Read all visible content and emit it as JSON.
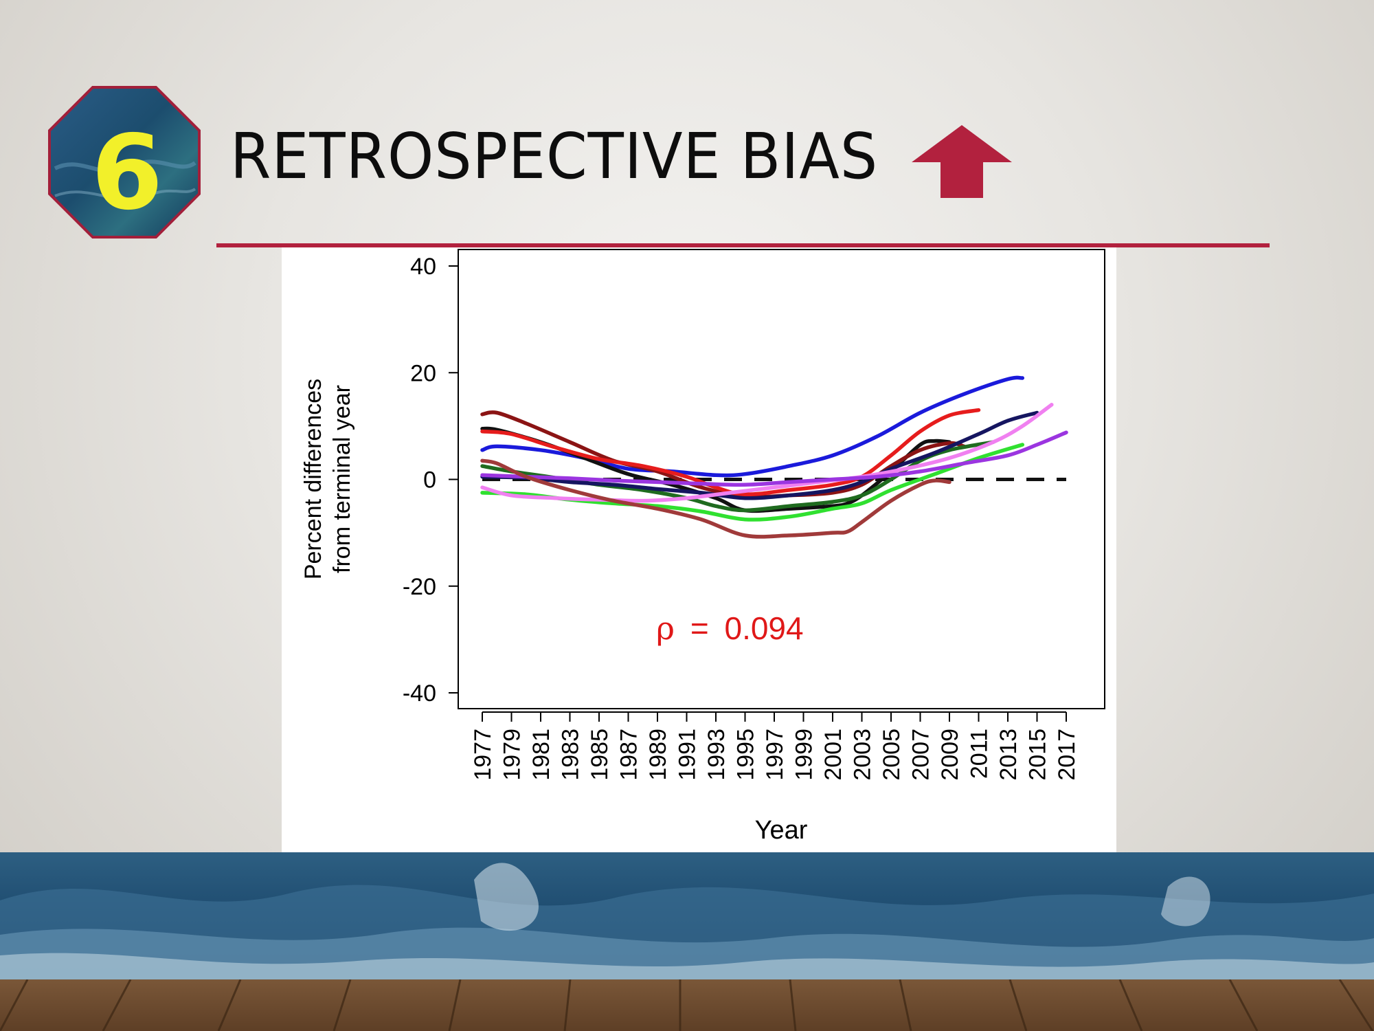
{
  "slide": {
    "badge_number": "6",
    "title": "RETROSPECTIVE BIAS",
    "accent_color": "#b2213e",
    "badge_text_color": "#f2f02a",
    "arrow_icon": "arrow-up-icon"
  },
  "chart_data": {
    "type": "line",
    "title": "",
    "xlabel": "Year",
    "ylabel": [
      "Percent differences",
      "from terminal year"
    ],
    "xlim": [
      1977,
      2017
    ],
    "ylim": [
      -40,
      40
    ],
    "xticks": [
      "1977",
      "1979",
      "1981",
      "1983",
      "1985",
      "1987",
      "1989",
      "1991",
      "1993",
      "1995",
      "1997",
      "1999",
      "2001",
      "2003",
      "2005",
      "2007",
      "2009",
      "2011",
      "2013",
      "2015",
      "2017"
    ],
    "yticks": [
      "40",
      "20",
      "0",
      "-20",
      "-40"
    ],
    "grid": false,
    "legend": "none",
    "annotation": {
      "symbol": "ρ",
      "equals": "=",
      "value": "0.094",
      "color": "#e01818"
    },
    "series": [
      {
        "color": "#1a1adb",
        "x": [
          1977,
          1978,
          1981,
          1984,
          1987,
          1990,
          1993,
          1995,
          1998,
          2001,
          2004,
          2007,
          2010,
          2013,
          2014
        ],
        "y": [
          5.5,
          6.2,
          5.5,
          4.0,
          2.0,
          1.5,
          0.8,
          1.0,
          2.5,
          4.5,
          8.0,
          12.5,
          16.0,
          18.8,
          19.0
        ]
      },
      {
        "color": "#111111",
        "x": [
          1977,
          1978,
          1981,
          1984,
          1987,
          1990,
          1993,
          1995,
          1998,
          2001,
          2002,
          2003,
          2005,
          2007,
          2008,
          2009
        ],
        "y": [
          9.5,
          9.3,
          7.0,
          4.0,
          1.0,
          -1.0,
          -3.5,
          -5.8,
          -5.5,
          -5.0,
          -4.5,
          -3.0,
          1.5,
          6.5,
          7.2,
          7.0
        ]
      },
      {
        "color": "#8b1414",
        "x": [
          1977,
          1978,
          1980,
          1983,
          1986,
          1989,
          1992,
          1995,
          1998,
          2001,
          2003,
          2005,
          2007,
          2009,
          2010
        ],
        "y": [
          12.2,
          12.5,
          10.5,
          7.0,
          3.5,
          1.5,
          -1.5,
          -3.2,
          -3.0,
          -2.5,
          -1.0,
          2.5,
          5.5,
          6.8,
          6.2
        ]
      },
      {
        "color": "#e61c1c",
        "x": [
          1977,
          1979,
          1982,
          1985,
          1988,
          1991,
          1993,
          1995,
          1998,
          2001,
          2003,
          2005,
          2007,
          2009,
          2011
        ],
        "y": [
          9.0,
          8.5,
          6.0,
          3.8,
          2.5,
          0.5,
          -1.5,
          -2.8,
          -2.0,
          -1.0,
          0.5,
          4.5,
          9.0,
          12.0,
          13.0
        ]
      },
      {
        "color": "#1f6b1f",
        "x": [
          1977,
          1979,
          1982,
          1985,
          1988,
          1991,
          1993,
          1995,
          1998,
          2001,
          2003,
          2005,
          2007,
          2009,
          2012
        ],
        "y": [
          2.5,
          1.5,
          0.3,
          -1.0,
          -2.0,
          -3.5,
          -5.0,
          -5.8,
          -5.0,
          -4.2,
          -3.0,
          0.0,
          3.5,
          5.5,
          7.0
        ]
      },
      {
        "color": "#30e030",
        "x": [
          1977,
          1980,
          1983,
          1986,
          1989,
          1992,
          1995,
          1998,
          2001,
          2003,
          2005,
          2008,
          2011,
          2014
        ],
        "y": [
          -2.5,
          -2.8,
          -3.8,
          -4.5,
          -5.0,
          -6.0,
          -7.5,
          -7.0,
          -5.5,
          -4.5,
          -2.0,
          1.0,
          4.0,
          6.5
        ]
      },
      {
        "color": "#151560",
        "x": [
          1977,
          1980,
          1983,
          1986,
          1989,
          1992,
          1995,
          1998,
          2001,
          2003,
          2005,
          2008,
          2011,
          2013,
          2015
        ],
        "y": [
          0.5,
          0.3,
          -0.5,
          -1.0,
          -1.8,
          -2.5,
          -3.5,
          -3.0,
          -2.0,
          -0.5,
          2.0,
          5.0,
          8.5,
          11.0,
          12.5
        ]
      },
      {
        "color": "#f080f0",
        "x": [
          1977,
          1979,
          1982,
          1985,
          1988,
          1991,
          1994,
          1997,
          2000,
          2003,
          2006,
          2009,
          2012,
          2014,
          2016
        ],
        "y": [
          -1.5,
          -3.0,
          -3.5,
          -3.8,
          -4.0,
          -3.5,
          -2.5,
          -1.5,
          -0.5,
          0.5,
          2.0,
          4.0,
          7.0,
          10.0,
          14.0
        ]
      },
      {
        "color": "#9b35e0",
        "x": [
          1977,
          1980,
          1983,
          1986,
          1989,
          1992,
          1995,
          1998,
          2001,
          2004,
          2007,
          2010,
          2013,
          2015,
          2017
        ],
        "y": [
          0.8,
          0.5,
          0.2,
          -0.2,
          -0.5,
          -0.8,
          -1.0,
          -0.5,
          0.0,
          0.5,
          1.5,
          3.0,
          4.5,
          6.5,
          8.8
        ]
      },
      {
        "color": "#a03a3a",
        "x": [
          1977,
          1978,
          1980,
          1983,
          1986,
          1989,
          1992,
          1995,
          1998,
          2001,
          2002,
          2003,
          2005,
          2007,
          2008,
          2009
        ],
        "y": [
          3.5,
          3.0,
          0.5,
          -2.0,
          -4.0,
          -5.5,
          -7.5,
          -10.5,
          -10.5,
          -10.0,
          -9.8,
          -8.0,
          -4.0,
          -1.0,
          -0.2,
          -0.5
        ]
      }
    ],
    "reference_line": {
      "y": 0,
      "x": [
        1977,
        2017
      ],
      "color": "#111111",
      "style": "dashed"
    }
  }
}
